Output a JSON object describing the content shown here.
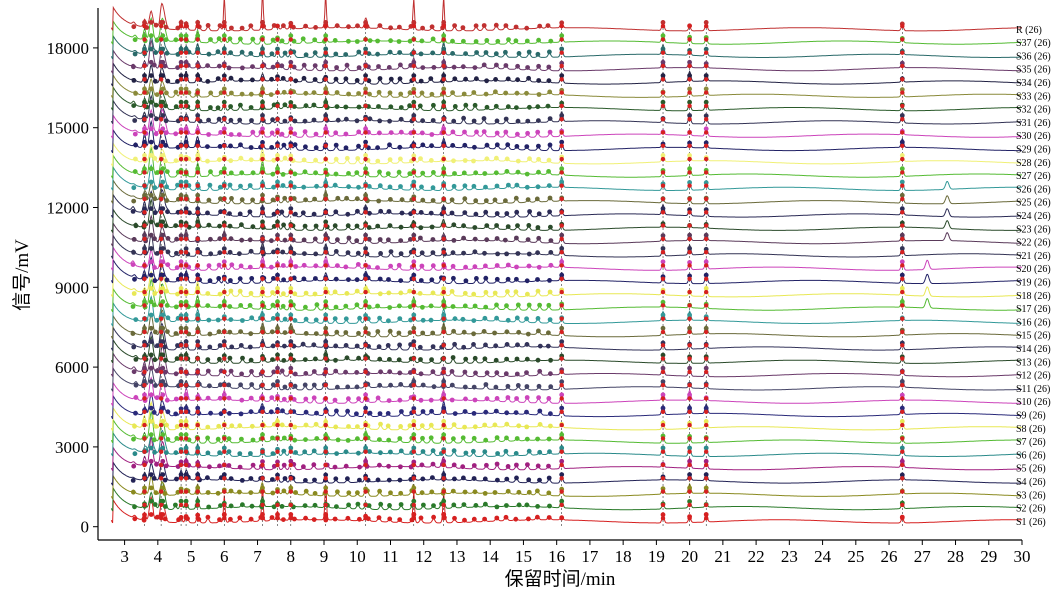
{
  "chart_data": {
    "type": "line",
    "xlabel": "保留时间/min",
    "ylabel": "信号/mV",
    "xlim": [
      2.2,
      30.0
    ],
    "ylim": [
      -500,
      19500
    ],
    "x_ticks": [
      3,
      4,
      5,
      6,
      7,
      8,
      9,
      10,
      11,
      12,
      13,
      14,
      15,
      16,
      17,
      18,
      19,
      20,
      21,
      22,
      23,
      24,
      25,
      26,
      27,
      28,
      29,
      30
    ],
    "y_ticks": [
      0,
      3000,
      6000,
      9000,
      12000,
      15000,
      18000
    ],
    "x_tick_labels": [
      "3",
      "4",
      "5",
      "6",
      "7",
      "8",
      "9",
      "10",
      "11",
      "12",
      "13",
      "14",
      "15",
      "16",
      "17",
      "18",
      "19",
      "20",
      "21",
      "22",
      "23",
      "24",
      "25",
      "26",
      "27",
      "28",
      "29",
      "30"
    ],
    "y_tick_labels": [
      "0",
      "3000",
      "6000",
      "9000",
      "12000",
      "15000",
      "18000"
    ],
    "common_peaks_min": [
      3.6,
      4.1,
      4.7,
      4.85,
      5.2,
      6.0,
      7.15,
      7.6,
      8.0,
      9.05,
      10.25,
      11.7,
      12.6,
      16.15,
      19.2,
      20.0,
      20.5,
      26.4
    ],
    "series": [
      {
        "name": "S1 (26)",
        "baseline": 200,
        "color": "#d62020"
      },
      {
        "name": "S2 (26)",
        "baseline": 700,
        "color": "#2a7a2a"
      },
      {
        "name": "S3 (26)",
        "baseline": 1200,
        "color": "#8a8a20"
      },
      {
        "name": "S4 (26)",
        "baseline": 1700,
        "color": "#222255"
      },
      {
        "name": "S5 (26)",
        "baseline": 2200,
        "color": "#a02080"
      },
      {
        "name": "S6 (26)",
        "baseline": 2700,
        "color": "#2a8a8a"
      },
      {
        "name": "S7 (26)",
        "baseline": 3200,
        "color": "#55bb33"
      },
      {
        "name": "S8 (26)",
        "baseline": 3700,
        "color": "#e8e855"
      },
      {
        "name": "S9 (26)",
        "baseline": 4200,
        "color": "#2a2a7a"
      },
      {
        "name": "S10 (26)",
        "baseline": 4700,
        "color": "#cc44bb"
      },
      {
        "name": "S11 (26)",
        "baseline": 5200,
        "color": "#444466"
      },
      {
        "name": "S12 (26)",
        "baseline": 5700,
        "color": "#6a3a6a"
      },
      {
        "name": "S13 (26)",
        "baseline": 6200,
        "color": "#2a4a2a"
      },
      {
        "name": "S14 (26)",
        "baseline": 6700,
        "color": "#33335a"
      },
      {
        "name": "S15 (26)",
        "baseline": 7200,
        "color": "#6a6a3a"
      },
      {
        "name": "S16 (26)",
        "baseline": 7700,
        "color": "#339999"
      },
      {
        "name": "S17 (26)",
        "baseline": 8200,
        "color": "#55bb33"
      },
      {
        "name": "S18 (26)",
        "baseline": 8700,
        "color": "#e8e855"
      },
      {
        "name": "S19 (26)",
        "baseline": 9200,
        "color": "#222266"
      },
      {
        "name": "S20 (26)",
        "baseline": 9700,
        "color": "#cc44bb"
      },
      {
        "name": "S21 (26)",
        "baseline": 10200,
        "color": "#333355"
      },
      {
        "name": "S22 (26)",
        "baseline": 10700,
        "color": "#5a3a5a"
      },
      {
        "name": "S23 (26)",
        "baseline": 11200,
        "color": "#2a4a2a"
      },
      {
        "name": "S24 (26)",
        "baseline": 11700,
        "color": "#2a2a55"
      },
      {
        "name": "S25 (26)",
        "baseline": 12200,
        "color": "#6a6a3a"
      },
      {
        "name": "S26 (26)",
        "baseline": 12700,
        "color": "#339999"
      },
      {
        "name": "S27 (26)",
        "baseline": 13200,
        "color": "#55bb33"
      },
      {
        "name": "S28 (26)",
        "baseline": 13700,
        "color": "#f0f077"
      },
      {
        "name": "S29 (26)",
        "baseline": 14200,
        "color": "#222266"
      },
      {
        "name": "S30 (26)",
        "baseline": 14700,
        "color": "#cc44bb"
      },
      {
        "name": "S31 (26)",
        "baseline": 15200,
        "color": "#333355"
      },
      {
        "name": "S32 (26)",
        "baseline": 15700,
        "color": "#2a5a2a"
      },
      {
        "name": "S33 (26)",
        "baseline": 16200,
        "color": "#8a8a3a"
      },
      {
        "name": "S34 (26)",
        "baseline": 16700,
        "color": "#222244"
      },
      {
        "name": "S35 (26)",
        "baseline": 17200,
        "color": "#6a3a6a"
      },
      {
        "name": "S36 (26)",
        "baseline": 17700,
        "color": "#2a6a6a"
      },
      {
        "name": "S37 (26)",
        "baseline": 18200,
        "color": "#55bb33"
      },
      {
        "name": "R (26)",
        "baseline": 18700,
        "color": "#c03030"
      }
    ],
    "grid": false,
    "legend": "right, inline labels at trace ends"
  }
}
